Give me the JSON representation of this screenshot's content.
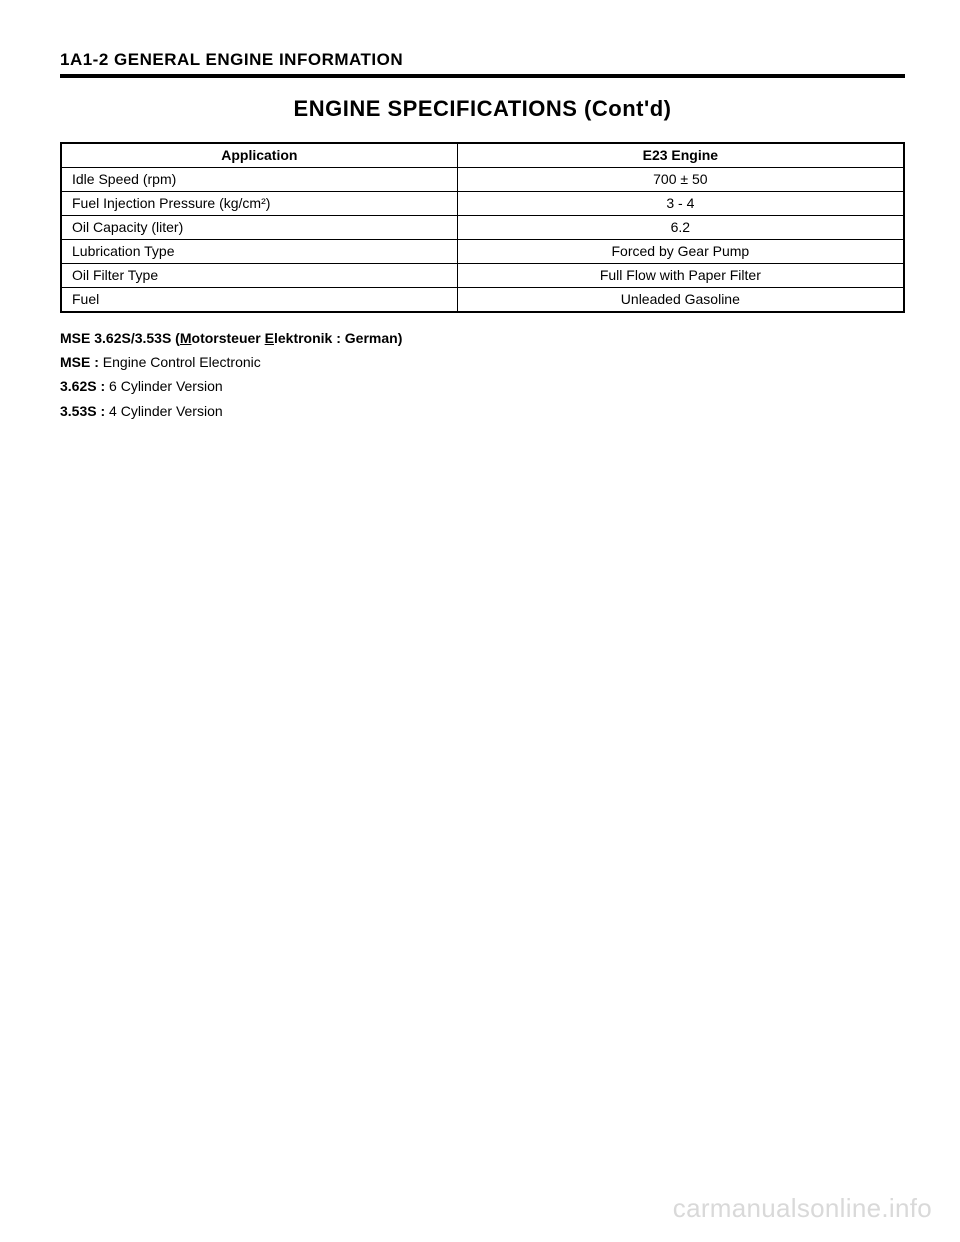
{
  "header": {
    "section_code": "1A1-2  GENERAL ENGINE INFORMATION"
  },
  "title": "ENGINE SPECIFICATIONS (Cont'd)",
  "table": {
    "columns": [
      "Application",
      "E23 Engine"
    ],
    "rows": [
      {
        "label": "Idle Speed (rpm)",
        "value": "700 ± 50"
      },
      {
        "label": "Fuel Injection Pressure (kg/cm²)",
        "value": "3 - 4"
      },
      {
        "label": "Oil Capacity (liter)",
        "value": "6.2"
      },
      {
        "label": "Lubrication Type",
        "value": "Forced by Gear Pump"
      },
      {
        "label": "Oil Filter Type",
        "value": "Full Flow with Paper Filter"
      },
      {
        "label": "Fuel",
        "value": "Unleaded Gasoline"
      }
    ],
    "col_widths": [
      "47%",
      "53%"
    ],
    "border_color": "#000000",
    "font_size": 14
  },
  "notes": {
    "line1_prefix": "MSE 3.62S/3.53S (",
    "line1_u1": "M",
    "line1_mid1": "otorsteuer ",
    "line1_u2": "E",
    "line1_suffix": "lektronik : German)",
    "line2_bold": "MSE : ",
    "line2_rest": "Engine Control Electronic",
    "line3_bold": "3.62S : ",
    "line3_rest": "6 Cylinder Version",
    "line4_bold": "3.53S : ",
    "line4_rest": "4 Cylinder Version"
  },
  "watermark": "carmanualsonline.info",
  "colors": {
    "text": "#000000",
    "background": "#ffffff",
    "watermark": "#d9d9d9"
  }
}
